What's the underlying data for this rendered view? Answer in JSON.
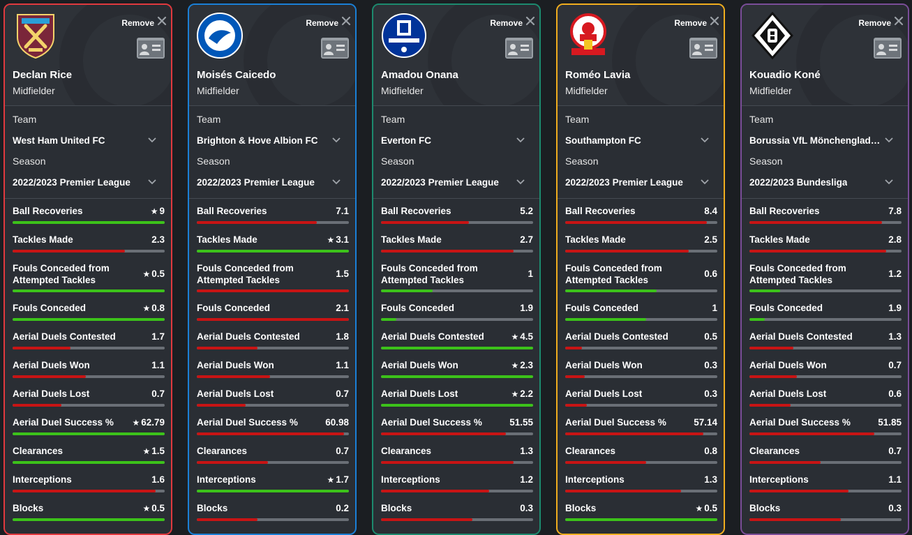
{
  "ui": {
    "remove_label": "Remove",
    "team_label": "Team",
    "season_label": "Season",
    "icons": {
      "remove": "close-icon",
      "profile": "id-card-icon",
      "dropdown": "chevron-down-icon",
      "best": "star-icon"
    },
    "colors": {
      "good": "#3cc21a",
      "bad": "#c81414",
      "track": "#6a6f76"
    }
  },
  "players": [
    {
      "name": "Declan Rice",
      "position": "Midfielder",
      "team": "West Ham United FC",
      "season": "2022/2023 Premier League",
      "border_color": "#e0393e",
      "badge": "west-ham-crest-icon",
      "stats": [
        {
          "label": "Ball Recoveries",
          "value": "9",
          "star": true,
          "fill": 1.0,
          "good": true
        },
        {
          "label": "Tackles Made",
          "value": "2.3",
          "star": false,
          "fill": 0.74,
          "good": false
        },
        {
          "label": "Fouls Conceded from Attempted Tackles",
          "value": "0.5",
          "star": true,
          "fill": 1.0,
          "good": true
        },
        {
          "label": "Fouls Conceded",
          "value": "0.8",
          "star": true,
          "fill": 1.0,
          "good": true
        },
        {
          "label": "Aerial Duels Contested",
          "value": "1.7",
          "star": false,
          "fill": 0.38,
          "good": false
        },
        {
          "label": "Aerial Duels Won",
          "value": "1.1",
          "star": false,
          "fill": 0.48,
          "good": false
        },
        {
          "label": "Aerial Duels Lost",
          "value": "0.7",
          "star": false,
          "fill": 0.32,
          "good": false
        },
        {
          "label": "Aerial Duel Success %",
          "value": "62.79",
          "star": true,
          "fill": 1.0,
          "good": true
        },
        {
          "label": "Clearances",
          "value": "1.5",
          "star": true,
          "fill": 1.0,
          "good": true
        },
        {
          "label": "Interceptions",
          "value": "1.6",
          "star": false,
          "fill": 0.94,
          "good": false
        },
        {
          "label": "Blocks",
          "value": "0.5",
          "star": true,
          "fill": 1.0,
          "good": true
        }
      ]
    },
    {
      "name": "Moisés Caicedo",
      "position": "Midfielder",
      "team": "Brighton & Hove Albion FC",
      "season": "2022/2023 Premier League",
      "border_color": "#1a7fd6",
      "badge": "brighton-crest-icon",
      "stats": [
        {
          "label": "Ball Recoveries",
          "value": "7.1",
          "star": false,
          "fill": 0.79,
          "good": false
        },
        {
          "label": "Tackles Made",
          "value": "3.1",
          "star": true,
          "fill": 1.0,
          "good": true
        },
        {
          "label": "Fouls Conceded from Attempted Tackles",
          "value": "1.5",
          "star": false,
          "fill": 1.0,
          "good": false
        },
        {
          "label": "Fouls Conceded",
          "value": "2.1",
          "star": false,
          "fill": 1.0,
          "good": false
        },
        {
          "label": "Aerial Duels Contested",
          "value": "1.8",
          "star": false,
          "fill": 0.4,
          "good": false
        },
        {
          "label": "Aerial Duels Won",
          "value": "1.1",
          "star": false,
          "fill": 0.48,
          "good": false
        },
        {
          "label": "Aerial Duels Lost",
          "value": "0.7",
          "star": false,
          "fill": 0.32,
          "good": false
        },
        {
          "label": "Aerial Duel Success %",
          "value": "60.98",
          "star": false,
          "fill": 0.97,
          "good": false
        },
        {
          "label": "Clearances",
          "value": "0.7",
          "star": false,
          "fill": 0.47,
          "good": false
        },
        {
          "label": "Interceptions",
          "value": "1.7",
          "star": true,
          "fill": 1.0,
          "good": true
        },
        {
          "label": "Blocks",
          "value": "0.2",
          "star": false,
          "fill": 0.4,
          "good": false
        }
      ]
    },
    {
      "name": "Amadou Onana",
      "position": "Midfielder",
      "team": "Everton FC",
      "season": "2022/2023 Premier League",
      "border_color": "#1c8a6e",
      "badge": "everton-crest-icon",
      "stats": [
        {
          "label": "Ball Recoveries",
          "value": "5.2",
          "star": false,
          "fill": 0.58,
          "good": false
        },
        {
          "label": "Tackles Made",
          "value": "2.7",
          "star": false,
          "fill": 0.87,
          "good": false
        },
        {
          "label": "Fouls Conceded from Attempted Tackles",
          "value": "1",
          "star": false,
          "fill": 0.34,
          "good": true
        },
        {
          "label": "Fouls Conceded",
          "value": "1.9",
          "star": false,
          "fill": 0.1,
          "good": true
        },
        {
          "label": "Aerial Duels Contested",
          "value": "4.5",
          "star": true,
          "fill": 1.0,
          "good": true
        },
        {
          "label": "Aerial Duels Won",
          "value": "2.3",
          "star": true,
          "fill": 1.0,
          "good": true
        },
        {
          "label": "Aerial Duels Lost",
          "value": "2.2",
          "star": true,
          "fill": 1.0,
          "good": true
        },
        {
          "label": "Aerial Duel Success %",
          "value": "51.55",
          "star": false,
          "fill": 0.82,
          "good": false
        },
        {
          "label": "Clearances",
          "value": "1.3",
          "star": false,
          "fill": 0.87,
          "good": false
        },
        {
          "label": "Interceptions",
          "value": "1.2",
          "star": false,
          "fill": 0.71,
          "good": false
        },
        {
          "label": "Blocks",
          "value": "0.3",
          "star": false,
          "fill": 0.6,
          "good": false
        }
      ]
    },
    {
      "name": "Roméo Lavia",
      "position": "Midfielder",
      "team": "Southampton FC",
      "season": "2022/2023 Premier League",
      "border_color": "#f0ad1e",
      "badge": "southampton-crest-icon",
      "stats": [
        {
          "label": "Ball Recoveries",
          "value": "8.4",
          "star": false,
          "fill": 0.93,
          "good": false
        },
        {
          "label": "Tackles Made",
          "value": "2.5",
          "star": false,
          "fill": 0.81,
          "good": false
        },
        {
          "label": "Fouls Conceded from Attempted Tackles",
          "value": "0.6",
          "star": false,
          "fill": 0.6,
          "good": true
        },
        {
          "label": "Fouls Conceded",
          "value": "1",
          "star": false,
          "fill": 0.53,
          "good": true
        },
        {
          "label": "Aerial Duels Contested",
          "value": "0.5",
          "star": false,
          "fill": 0.11,
          "good": false
        },
        {
          "label": "Aerial Duels Won",
          "value": "0.3",
          "star": false,
          "fill": 0.13,
          "good": false
        },
        {
          "label": "Aerial Duels Lost",
          "value": "0.3",
          "star": false,
          "fill": 0.14,
          "good": false
        },
        {
          "label": "Aerial Duel Success %",
          "value": "57.14",
          "star": false,
          "fill": 0.91,
          "good": false
        },
        {
          "label": "Clearances",
          "value": "0.8",
          "star": false,
          "fill": 0.53,
          "good": false
        },
        {
          "label": "Interceptions",
          "value": "1.3",
          "star": false,
          "fill": 0.76,
          "good": false
        },
        {
          "label": "Blocks",
          "value": "0.5",
          "star": true,
          "fill": 1.0,
          "good": true
        }
      ]
    },
    {
      "name": "Kouadio Koné",
      "position": "Midfielder",
      "team": "Borussia VfL Mönchengladbach",
      "season": "2022/2023 Bundesliga",
      "border_color": "#7a4d98",
      "badge": "gladbach-crest-icon",
      "stats": [
        {
          "label": "Ball Recoveries",
          "value": "7.8",
          "star": false,
          "fill": 0.87,
          "good": false
        },
        {
          "label": "Tackles Made",
          "value": "2.8",
          "star": false,
          "fill": 0.9,
          "good": false
        },
        {
          "label": "Fouls Conceded from Attempted Tackles",
          "value": "1.2",
          "star": false,
          "fill": 0.2,
          "good": true
        },
        {
          "label": "Fouls Conceded",
          "value": "1.9",
          "star": false,
          "fill": 0.1,
          "good": true
        },
        {
          "label": "Aerial Duels Contested",
          "value": "1.3",
          "star": false,
          "fill": 0.29,
          "good": false
        },
        {
          "label": "Aerial Duels Won",
          "value": "0.7",
          "star": false,
          "fill": 0.31,
          "good": false
        },
        {
          "label": "Aerial Duels Lost",
          "value": "0.6",
          "star": false,
          "fill": 0.27,
          "good": false
        },
        {
          "label": "Aerial Duel Success %",
          "value": "51.85",
          "star": false,
          "fill": 0.82,
          "good": false
        },
        {
          "label": "Clearances",
          "value": "0.7",
          "star": false,
          "fill": 0.47,
          "good": false
        },
        {
          "label": "Interceptions",
          "value": "1.1",
          "star": false,
          "fill": 0.65,
          "good": false
        },
        {
          "label": "Blocks",
          "value": "0.3",
          "star": false,
          "fill": 0.6,
          "good": false
        }
      ]
    }
  ]
}
